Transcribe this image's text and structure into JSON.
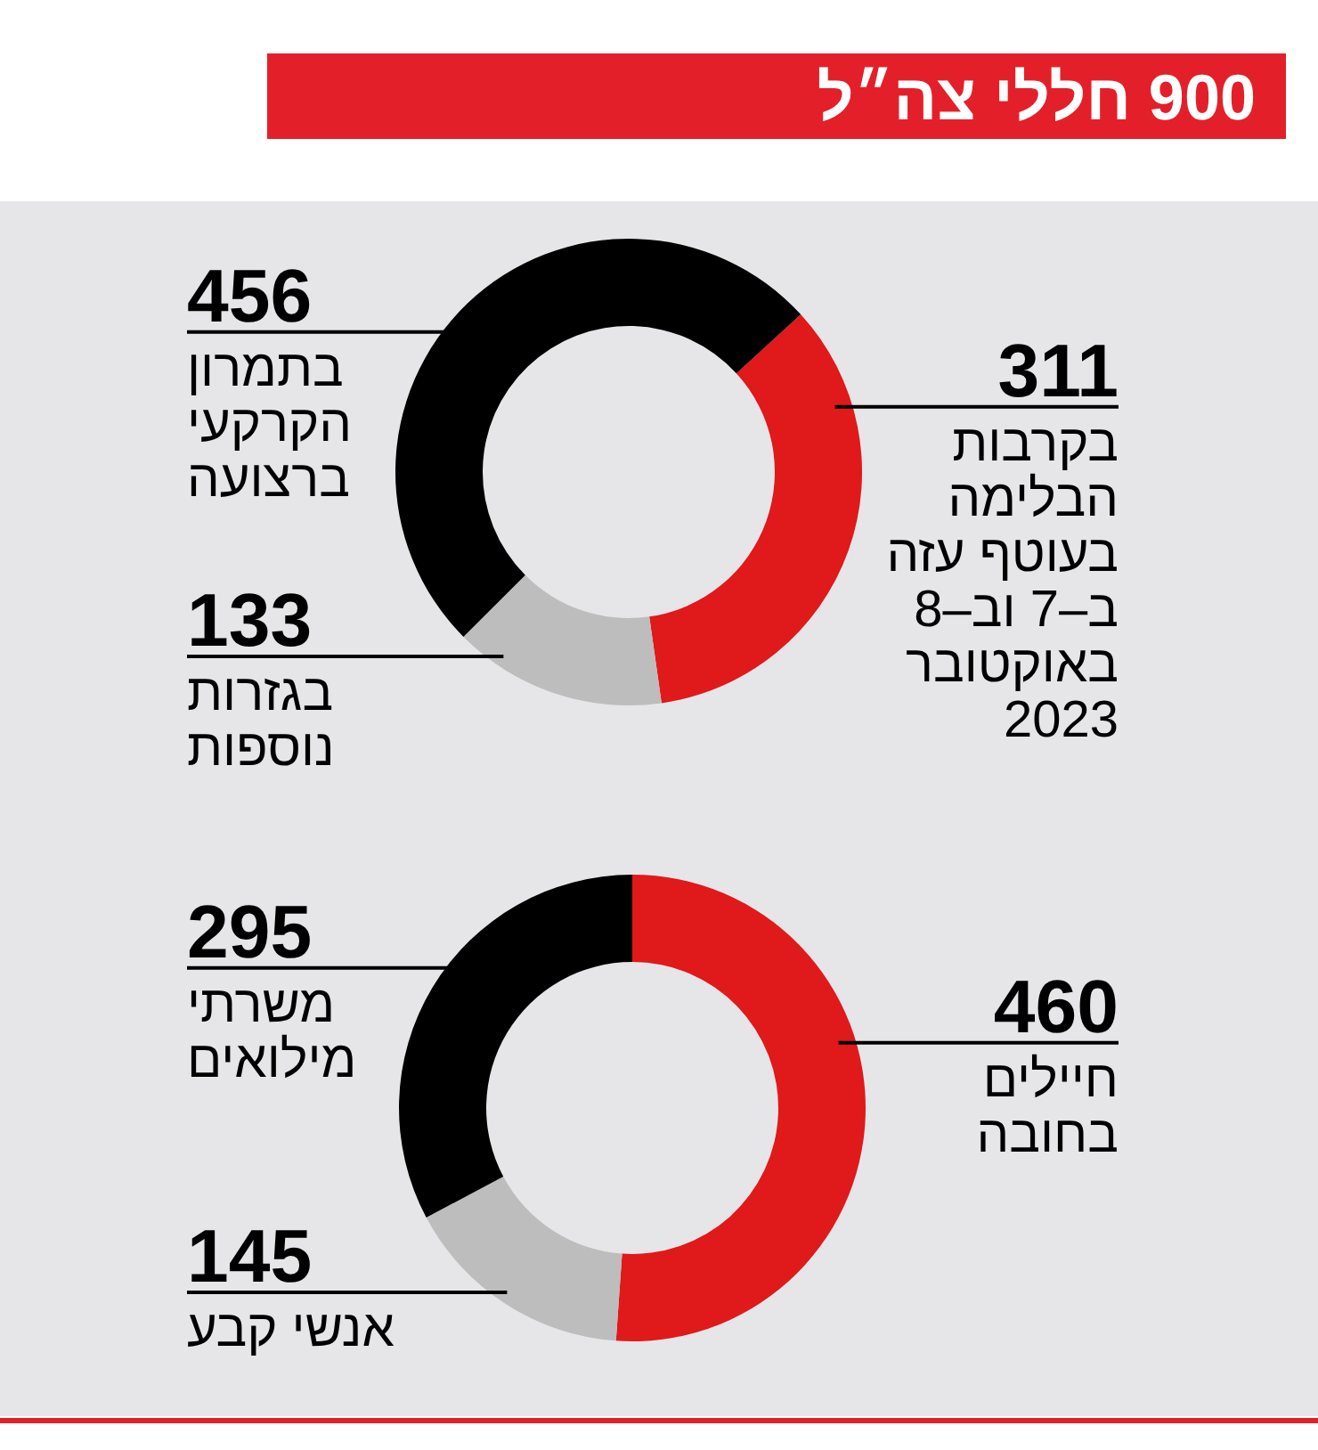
{
  "chart_data": [
    {
      "type": "donut",
      "title": "900 חללי צה״ל",
      "categories": [
        "בקרבות\nהבלימה\nבעוטף עזה\nב–7 וב–8\nבאוקטובר\n2023",
        "בגזרות\nנוספות",
        "בתמרון\nהקרקעי\nברצועה"
      ],
      "values": [
        311,
        133,
        456
      ],
      "colors": [
        "#e0191b",
        "#bdbdbd",
        "#000000"
      ],
      "data_labels": true
    },
    {
      "type": "donut",
      "categories": [
        "חיילים\nבחובה",
        "אנשי קבע",
        "משרתי\nמילואים"
      ],
      "values": [
        460,
        145,
        295
      ],
      "colors": [
        "#e0191b",
        "#bdbdbd",
        "#000000"
      ],
      "data_labels": true
    }
  ]
}
